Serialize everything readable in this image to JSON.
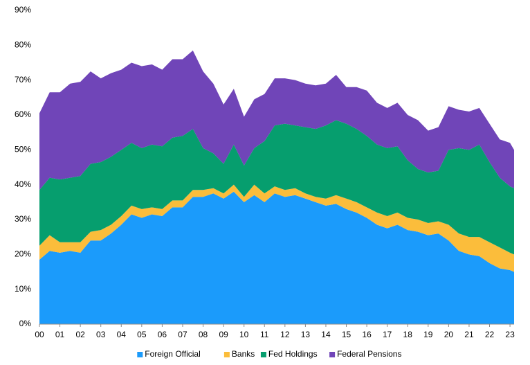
{
  "chart_data": {
    "type": "stacked_area",
    "x": [
      0,
      0.5,
      1,
      1.5,
      2,
      2.5,
      3,
      3.5,
      4,
      4.5,
      5,
      5.5,
      6,
      6.5,
      7,
      7.5,
      8,
      8.5,
      9,
      9.5,
      10,
      10.5,
      11,
      11.5,
      12,
      12.5,
      13,
      13.5,
      14,
      14.5,
      15,
      15.5,
      16,
      16.5,
      17,
      17.5,
      18,
      18.5,
      19,
      19.5,
      20,
      20.5,
      21,
      21.5,
      22,
      22.5,
      23,
      23.2
    ],
    "series": [
      {
        "name": "Foreign Official",
        "color": "#1b9bfb",
        "values": [
          18.5,
          21,
          20.5,
          21,
          20.5,
          24,
          24,
          26,
          28.5,
          31.5,
          30.5,
          31.5,
          31,
          33.5,
          33.5,
          36.5,
          36.5,
          37.5,
          36,
          38,
          35,
          37,
          35,
          37.5,
          36.5,
          37,
          36,
          35,
          34,
          34.5,
          33,
          32,
          30.5,
          28.5,
          27.5,
          28.5,
          27,
          26.5,
          25.5,
          26,
          24,
          21,
          20,
          19.5,
          17.5,
          16,
          15.5,
          15
        ]
      },
      {
        "name": "Banks",
        "color": "#fbbd3b",
        "values": [
          4,
          4.5,
          3,
          2.5,
          3,
          2.5,
          3,
          2.5,
          2.5,
          2.5,
          2.5,
          2,
          2,
          2,
          2,
          2,
          2,
          1.5,
          1.5,
          2,
          1.5,
          3,
          2.5,
          2,
          2,
          2,
          1.5,
          1.5,
          2,
          2.5,
          3,
          3,
          3,
          3.5,
          3.5,
          3.5,
          3.5,
          3.5,
          3.5,
          3.5,
          4.5,
          5,
          5,
          5.5,
          6,
          6,
          5,
          5
        ]
      },
      {
        "name": "Fed Holdings",
        "color": "#069e6e",
        "values": [
          16,
          16.5,
          18,
          18.5,
          19,
          19.5,
          19.5,
          19.5,
          19,
          18,
          17.5,
          18,
          18,
          18,
          18.5,
          17.5,
          12,
          10,
          8.5,
          11.5,
          9,
          10.5,
          15,
          17.5,
          19,
          18,
          19,
          19.5,
          21,
          21.5,
          21.5,
          21,
          20.5,
          19.5,
          19.5,
          19,
          16.5,
          14.5,
          14.5,
          14.5,
          21.5,
          24.5,
          25,
          26.5,
          23,
          20,
          19,
          19
        ]
      },
      {
        "name": "Federal Pensions",
        "color": "#7045b8",
        "values": [
          22,
          24.5,
          25,
          27,
          27,
          26.5,
          24,
          24,
          23,
          23,
          23.5,
          23,
          22,
          22.5,
          22,
          22.5,
          22,
          20,
          17,
          16,
          14,
          14,
          13.5,
          13.5,
          13,
          13,
          12.5,
          12.5,
          12,
          13,
          10.5,
          12,
          13,
          12,
          11.5,
          12.5,
          13,
          14,
          12,
          12.5,
          12.5,
          11,
          11,
          10.5,
          11,
          11,
          12.5,
          11
        ]
      }
    ],
    "xlim": [
      0,
      23.2
    ],
    "xticks": [
      {
        "value": 0,
        "label": "00"
      },
      {
        "value": 1,
        "label": "01"
      },
      {
        "value": 2,
        "label": "02"
      },
      {
        "value": 3,
        "label": "03"
      },
      {
        "value": 4,
        "label": "04"
      },
      {
        "value": 5,
        "label": "05"
      },
      {
        "value": 6,
        "label": "06"
      },
      {
        "value": 7,
        "label": "07"
      },
      {
        "value": 8,
        "label": "08"
      },
      {
        "value": 9,
        "label": "09"
      },
      {
        "value": 10,
        "label": "10"
      },
      {
        "value": 11,
        "label": "11"
      },
      {
        "value": 12,
        "label": "12"
      },
      {
        "value": 13,
        "label": "13"
      },
      {
        "value": 14,
        "label": "14"
      },
      {
        "value": 15,
        "label": "15"
      },
      {
        "value": 16,
        "label": "16"
      },
      {
        "value": 17,
        "label": "17"
      },
      {
        "value": 18,
        "label": "18"
      },
      {
        "value": 19,
        "label": "19"
      },
      {
        "value": 20,
        "label": "20"
      },
      {
        "value": 21,
        "label": "21"
      },
      {
        "value": 22,
        "label": "22"
      },
      {
        "value": 23,
        "label": "23"
      }
    ],
    "ylim": [
      0,
      90
    ],
    "yticks": [
      {
        "value": 0,
        "label": "0%"
      },
      {
        "value": 10,
        "label": "10%"
      },
      {
        "value": 20,
        "label": "20%"
      },
      {
        "value": 30,
        "label": "30%"
      },
      {
        "value": 40,
        "label": "40%"
      },
      {
        "value": 50,
        "label": "50%"
      },
      {
        "value": 60,
        "label": "60%"
      },
      {
        "value": 70,
        "label": "70%"
      },
      {
        "value": 80,
        "label": "80%"
      },
      {
        "value": 90,
        "label": "90%"
      }
    ],
    "legend": "bottom"
  }
}
